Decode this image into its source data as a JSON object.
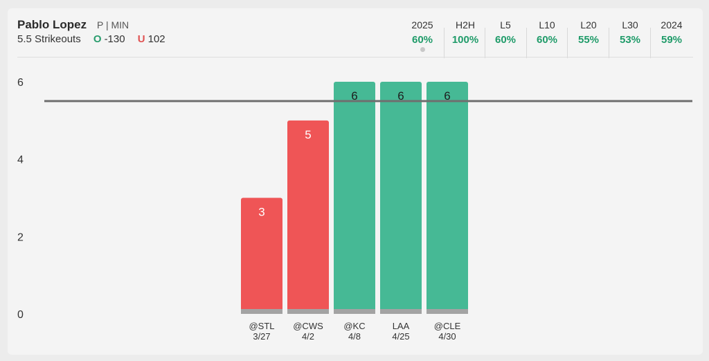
{
  "header": {
    "player_name": "Pablo Lopez",
    "player_meta": "P | MIN",
    "prop": "5.5 Strikeouts",
    "over_label": "O",
    "over_odds": "-130",
    "under_label": "U",
    "under_odds": "102"
  },
  "stats": [
    {
      "label": "2025",
      "value": "60%"
    },
    {
      "label": "H2H",
      "value": "100%"
    },
    {
      "label": "L5",
      "value": "60%"
    },
    {
      "label": "L10",
      "value": "60%"
    },
    {
      "label": "L20",
      "value": "55%"
    },
    {
      "label": "L30",
      "value": "53%"
    },
    {
      "label": "2024",
      "value": "59%"
    }
  ],
  "colors": {
    "over": "#46b995",
    "under": "#ef5556",
    "line": "#6f6f6f",
    "base": "#a3a3a3"
  },
  "chart_data": {
    "type": "bar",
    "categories": [
      "@STL",
      "@CWS",
      "@KC",
      "LAA",
      "@CLE"
    ],
    "dates": [
      "3/27",
      "4/2",
      "4/8",
      "4/25",
      "4/30"
    ],
    "values": [
      3,
      5,
      6,
      6,
      6
    ],
    "line": 5.5,
    "ylim": [
      0,
      6
    ],
    "yticks": [
      "0",
      "2",
      "4",
      "6"
    ],
    "grid": false,
    "legend": "none"
  }
}
